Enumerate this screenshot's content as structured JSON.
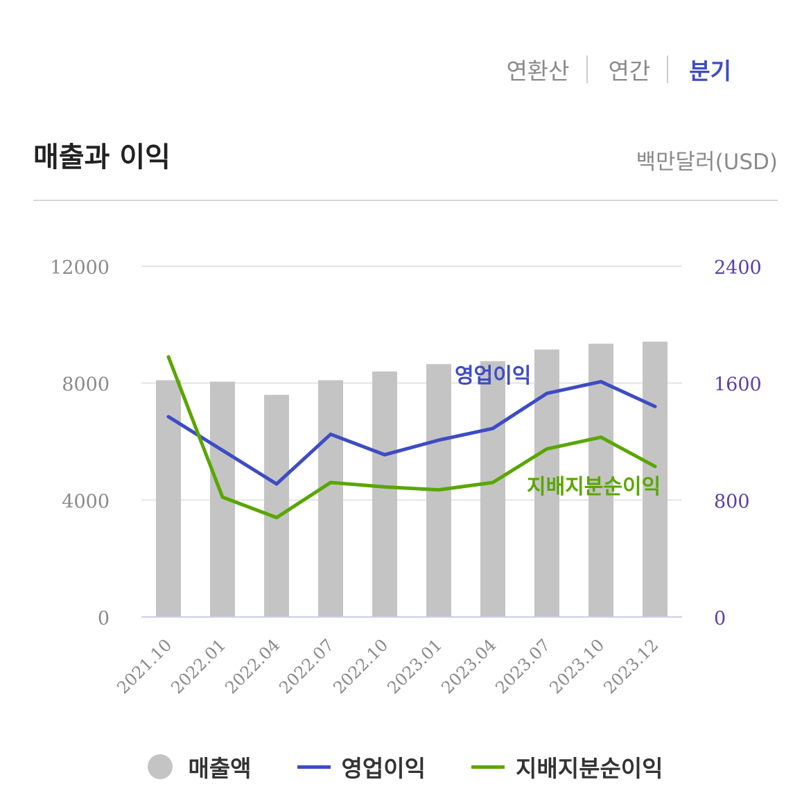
{
  "tabs": [
    {
      "label": "연환산",
      "active": false
    },
    {
      "label": "연간",
      "active": false
    },
    {
      "label": "분기",
      "active": true
    }
  ],
  "header": {
    "title": "매출과 이익",
    "unit": "백만달러(USD)"
  },
  "colors": {
    "bar": "#c4c4c4",
    "operating": "#3d4cc4",
    "net": "#5aa600",
    "right_axis": "#5b3fa6",
    "left_axis": "#8a8a8a"
  },
  "chart_data": {
    "type": "bar",
    "categories": [
      "2021.10",
      "2022.01",
      "2022.04",
      "2022.07",
      "2022.10",
      "2023.01",
      "2023.04",
      "2023.07",
      "2023.10",
      "2023.12"
    ],
    "y_left": {
      "ticks": [
        "0",
        "4000",
        "8000",
        "12000"
      ],
      "range": [
        0,
        12000
      ]
    },
    "y_right": {
      "ticks": [
        "0",
        "800",
        "1600",
        "2400"
      ],
      "range": [
        0,
        2400
      ]
    },
    "series": [
      {
        "name": "매출액",
        "type": "bar",
        "axis": "left",
        "values": [
          8100,
          8050,
          7600,
          8100,
          8400,
          8650,
          8750,
          9150,
          9350,
          9420
        ]
      },
      {
        "name": "영업이익",
        "type": "line",
        "axis": "right",
        "values": [
          1370,
          1140,
          910,
          1250,
          1110,
          1210,
          1290,
          1530,
          1610,
          1440
        ]
      },
      {
        "name": "지배지분순이익",
        "type": "line",
        "axis": "right",
        "values": [
          1780,
          820,
          680,
          920,
          890,
          870,
          920,
          1150,
          1230,
          1030
        ]
      }
    ],
    "line_labels": [
      {
        "text": "영업이익",
        "series": "영업이익"
      },
      {
        "text": "지배지분순이익",
        "series": "지배지분순이익"
      }
    ],
    "grid": true,
    "legend": "bottom"
  },
  "legend": [
    {
      "label": "매출액",
      "kind": "dot",
      "color": "#c4c4c4"
    },
    {
      "label": "영업이익",
      "kind": "line",
      "color": "#3d4cc4"
    },
    {
      "label": "지배지분순이익",
      "kind": "line",
      "color": "#5aa600"
    }
  ]
}
